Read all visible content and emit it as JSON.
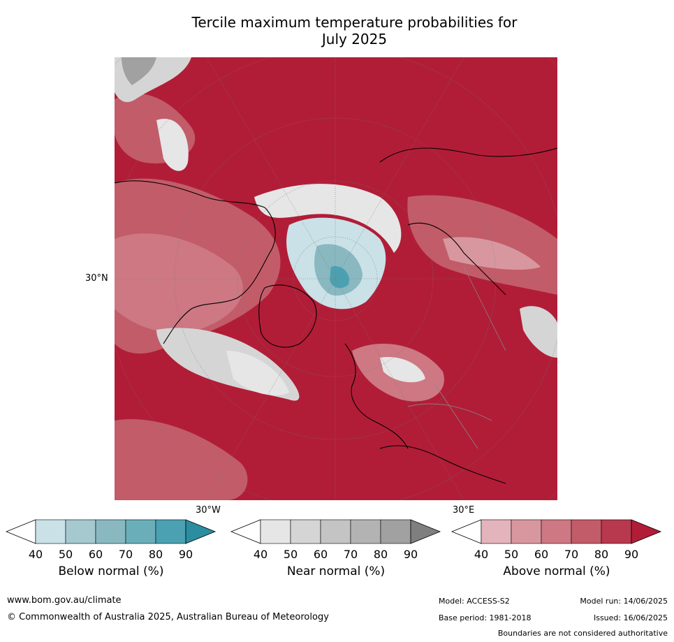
{
  "title_line1": "Tercile maximum temperature probabilities for",
  "title_line2": "July 2025",
  "map": {
    "lat_label": "30°N",
    "lon_label_west": "30°W",
    "lon_label_east": "30°E"
  },
  "colorbars": [
    {
      "label": "Below normal (%)",
      "ticks": [
        "40",
        "50",
        "60",
        "70",
        "80",
        "90"
      ],
      "colors": [
        "#ffffff",
        "#c9e1e7",
        "#a6c8cf",
        "#89b8c0",
        "#6aaeb9",
        "#4ba1b1",
        "#2b8da0"
      ]
    },
    {
      "label": "Near normal (%)",
      "ticks": [
        "40",
        "50",
        "60",
        "70",
        "80",
        "90"
      ],
      "colors": [
        "#ffffff",
        "#e6e6e6",
        "#d5d5d5",
        "#c4c4c4",
        "#b3b3b3",
        "#a1a1a1",
        "#7f7f7f"
      ]
    },
    {
      "label": "Above normal (%)",
      "ticks": [
        "40",
        "50",
        "60",
        "70",
        "80",
        "90"
      ],
      "colors": [
        "#ffffff",
        "#e3b4bb",
        "#d8979f",
        "#cd7883",
        "#c25c69",
        "#b8384d",
        "#b11d37"
      ]
    }
  ],
  "footer": {
    "website": "www.bom.gov.au/climate",
    "copyright": "© Commonwealth of Australia 2025, Australian Bureau of Meteorology",
    "model": "Model: ACCESS-S2",
    "base_period": "Base period: 1981-2018",
    "model_run": "Model run: 14/06/2025",
    "issued": "Issued: 16/06/2025",
    "disclaimer": "Boundaries are not considered authoritative"
  }
}
